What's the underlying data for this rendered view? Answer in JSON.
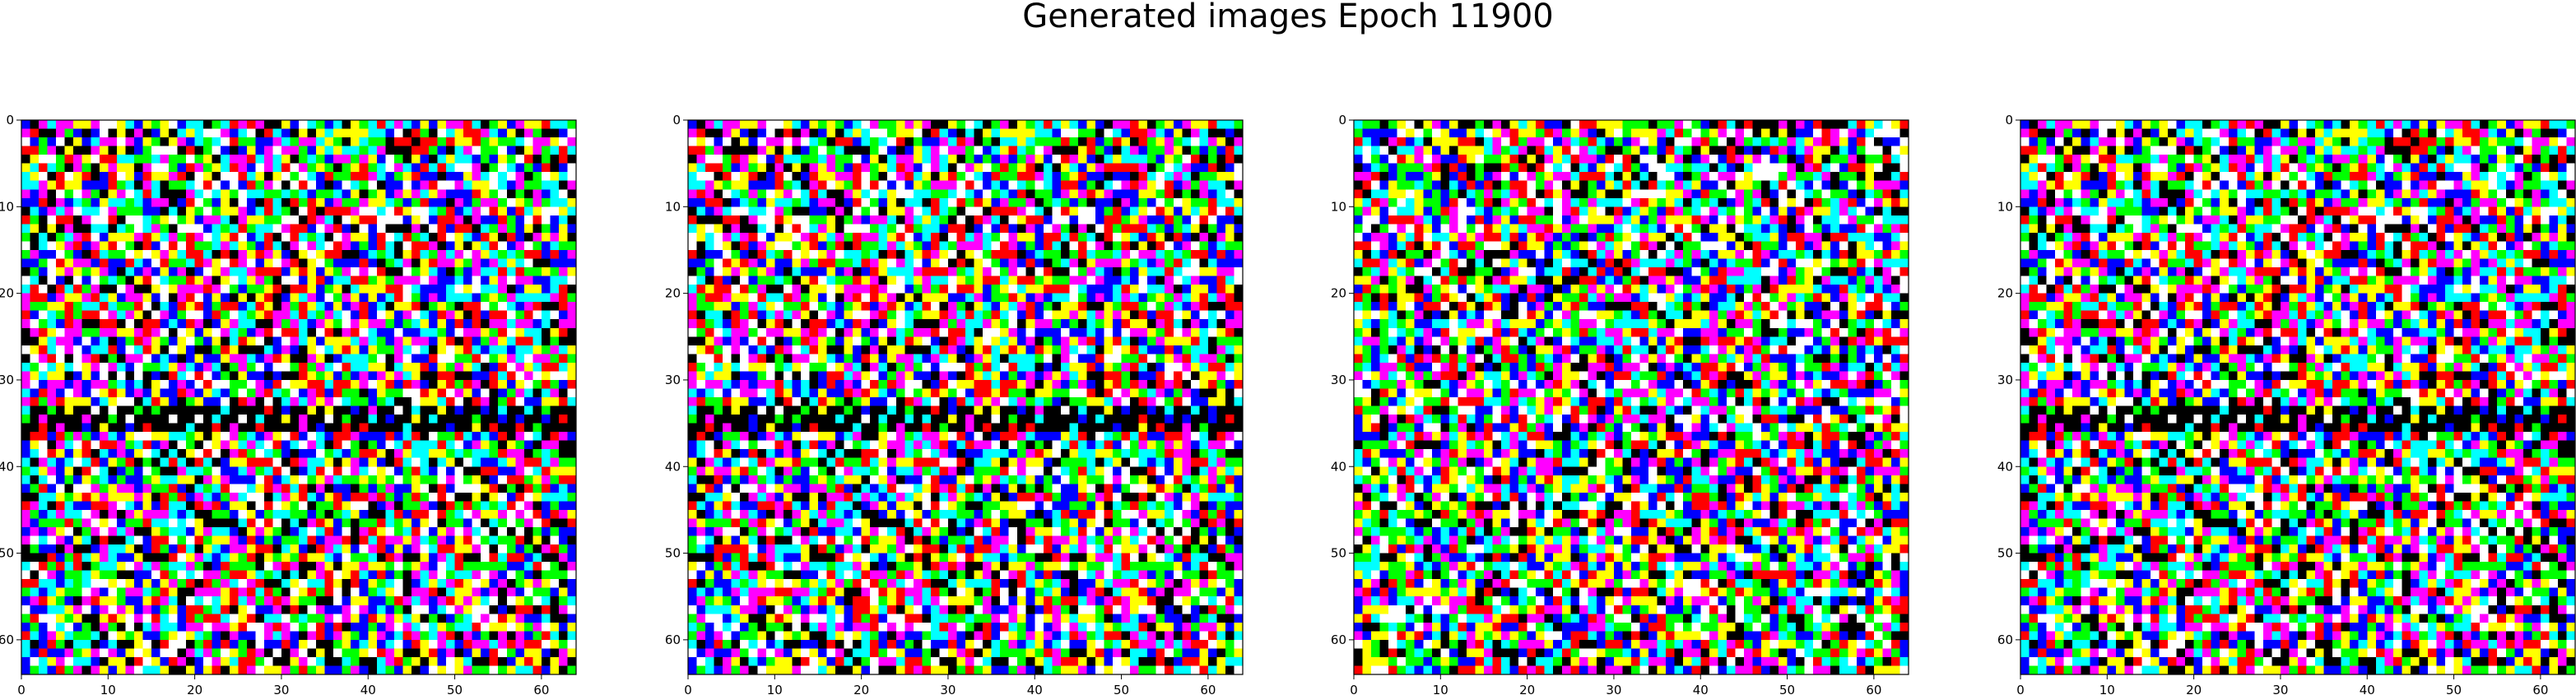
{
  "figure": {
    "title": "Generated images Epoch 11900"
  },
  "chart_data": [
    {
      "type": "heatmap",
      "title": "",
      "xlabel": "",
      "ylabel": "",
      "xlim": [
        0,
        64
      ],
      "ylim": [
        64,
        0
      ],
      "x_ticks": [
        "0",
        "10",
        "20",
        "30",
        "40",
        "50",
        "60"
      ],
      "y_ticks": [
        "0",
        "10",
        "20",
        "30",
        "40",
        "50",
        "60"
      ],
      "grid": false,
      "content": "64x64 RGB image of saturated noise pixels (red, green, blue, yellow, cyan, magenta, black, white)",
      "palette": [
        "#ffffff",
        "#00ff00",
        "#00ffff",
        "#ffff00",
        "#000000",
        "#ff00ff",
        "#0000ff",
        "#ff0000"
      ]
    },
    {
      "type": "heatmap",
      "title": "",
      "xlabel": "",
      "ylabel": "",
      "xlim": [
        0,
        64
      ],
      "ylim": [
        64,
        0
      ],
      "x_ticks": [
        "0",
        "10",
        "20",
        "30",
        "40",
        "50",
        "60"
      ],
      "y_ticks": [
        "0",
        "10",
        "20",
        "30",
        "40",
        "50",
        "60"
      ],
      "grid": false,
      "content": "64x64 RGB image of saturated noise pixels, nearly identical to the first panel",
      "palette": [
        "#ffffff",
        "#00ff00",
        "#00ffff",
        "#ffff00",
        "#000000",
        "#ff00ff",
        "#0000ff",
        "#ff0000"
      ]
    },
    {
      "type": "heatmap",
      "title": "",
      "xlabel": "",
      "ylabel": "",
      "xlim": [
        0,
        64
      ],
      "ylim": [
        64,
        0
      ],
      "x_ticks": [
        "0",
        "10",
        "20",
        "30",
        "40",
        "50",
        "60"
      ],
      "y_ticks": [
        "0",
        "10",
        "20",
        "30",
        "40",
        "50",
        "60"
      ],
      "grid": false,
      "content": "64x64 RGB image of saturated noise pixels with more magenta and black",
      "palette": [
        "#ffffff",
        "#ff00ff",
        "#00ff00",
        "#00ffff",
        "#000000",
        "#ffff00",
        "#0000ff",
        "#ff0000"
      ]
    },
    {
      "type": "heatmap",
      "title": "",
      "xlabel": "",
      "ylabel": "",
      "xlim": [
        0,
        64
      ],
      "ylim": [
        64,
        0
      ],
      "x_ticks": [
        "0",
        "10",
        "20",
        "30",
        "40",
        "50",
        "60"
      ],
      "y_ticks": [
        "0",
        "10",
        "20",
        "30",
        "40",
        "50",
        "60"
      ],
      "grid": false,
      "content": "64x64 RGB image of saturated noise pixels, similar to the first panel",
      "palette": [
        "#ffffff",
        "#00ff00",
        "#00ffff",
        "#ffff00",
        "#000000",
        "#ff00ff",
        "#0000ff",
        "#ff0000"
      ]
    }
  ]
}
